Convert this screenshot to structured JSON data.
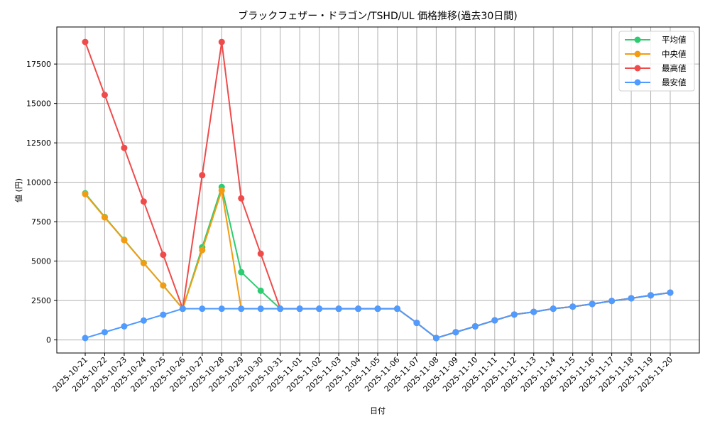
{
  "chart_data": {
    "type": "line",
    "title": "ブラックフェザー・ドラゴン/TSHD/UL 価格推移(過去30日間)",
    "xlabel": "日付",
    "ylabel": "値 (円)",
    "ylim": [
      -830,
      19850
    ],
    "yticks": [
      0,
      2500,
      5000,
      7500,
      10000,
      12500,
      15000,
      17500
    ],
    "grid": true,
    "legend_position": "upper right",
    "categories": [
      "2025-10-21",
      "2025-10-22",
      "2025-10-23",
      "2025-10-24",
      "2025-10-25",
      "2025-10-26",
      "2025-10-27",
      "2025-10-28",
      "2025-10-29",
      "2025-10-30",
      "2025-10-31",
      "2025-11-01",
      "2025-11-02",
      "2025-11-03",
      "2025-11-04",
      "2025-11-05",
      "2025-11-06",
      "2025-11-07",
      "2025-11-08",
      "2025-11-09",
      "2025-11-10",
      "2025-11-11",
      "2025-11-12",
      "2025-11-13",
      "2025-11-14",
      "2025-11-15",
      "2025-11-16",
      "2025-11-17",
      "2025-11-18",
      "2025-11-19",
      "2025-11-20"
    ],
    "series": [
      {
        "name": "平均値",
        "color": "#2ecc71",
        "values": [
          9300,
          7800,
          6350,
          4880,
          3450,
          1980,
          5880,
          9700,
          4300,
          3120,
          1980,
          1980,
          1980,
          1980,
          1980,
          1980,
          1980,
          1080,
          120,
          490,
          860,
          1240,
          1610,
          1780,
          1980,
          2110,
          2280,
          2470,
          2640,
          2830,
          3000
        ]
      },
      {
        "name": "中央値",
        "color": "#f39c12",
        "values": [
          9250,
          7770,
          6330,
          4870,
          3450,
          1980,
          5700,
          9480,
          1980,
          1980,
          1980,
          1980,
          1980,
          1980,
          1980,
          1980,
          1980,
          1080,
          120,
          490,
          860,
          1240,
          1610,
          1780,
          1980,
          2110,
          2280,
          2470,
          2640,
          2830,
          3000
        ]
      },
      {
        "name": "最高値",
        "color": "#ef4b4b",
        "values": [
          18900,
          15540,
          12180,
          8780,
          5400,
          1980,
          10450,
          18900,
          8980,
          5470,
          1980,
          1980,
          1980,
          1980,
          1980,
          1980,
          1980,
          1080,
          120,
          490,
          860,
          1240,
          1610,
          1780,
          1980,
          2110,
          2280,
          2470,
          2640,
          2830,
          3000
        ]
      },
      {
        "name": "最安値",
        "color": "#4f9bff",
        "values": [
          120,
          490,
          860,
          1230,
          1600,
          1980,
          1980,
          1980,
          1980,
          1980,
          1980,
          1980,
          1980,
          1980,
          1980,
          1980,
          1980,
          1080,
          120,
          490,
          860,
          1240,
          1610,
          1780,
          1980,
          2110,
          2280,
          2470,
          2640,
          2830,
          3000
        ]
      }
    ]
  },
  "legend": {
    "items": [
      {
        "label": "平均値",
        "color": "#2ecc71"
      },
      {
        "label": "中央値",
        "color": "#f39c12"
      },
      {
        "label": "最高値",
        "color": "#ef4b4b"
      },
      {
        "label": "最安値",
        "color": "#4f9bff"
      }
    ]
  }
}
